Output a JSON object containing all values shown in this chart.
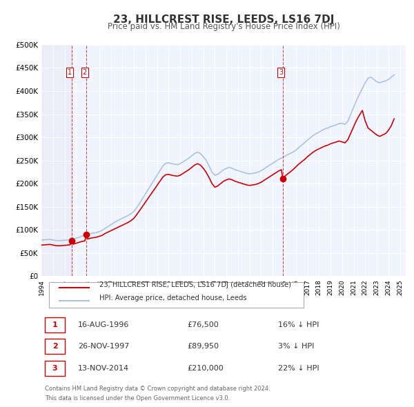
{
  "title": "23, HILLCREST RISE, LEEDS, LS16 7DJ",
  "subtitle": "Price paid vs. HM Land Registry's House Price Index (HPI)",
  "xlabel": "",
  "ylabel": "",
  "background_color": "#ffffff",
  "plot_bg_color": "#f0f4ff",
  "grid_color": "#ffffff",
  "hpi_color": "#aac4e0",
  "price_color": "#cc0000",
  "legend1": "23, HILLCREST RISE, LEEDS, LS16 7DJ (detached house)",
  "legend2": "HPI: Average price, detached house, Leeds",
  "transactions": [
    {
      "num": 1,
      "date": "16-AUG-1996",
      "price": 76500,
      "rel": "16% ↓ HPI",
      "year": 1996.62
    },
    {
      "num": 2,
      "date": "26-NOV-1997",
      "price": 89950,
      "rel": "3% ↓ HPI",
      "year": 1997.9
    },
    {
      "num": 3,
      "date": "13-NOV-2014",
      "price": 210000,
      "rel": "22% ↓ HPI",
      "year": 2014.87
    }
  ],
  "footer1": "Contains HM Land Registry data © Crown copyright and database right 2024.",
  "footer2": "This data is licensed under the Open Government Licence v3.0.",
  "hpi_data": {
    "years": [
      1994.0,
      1994.25,
      1994.5,
      1994.75,
      1995.0,
      1995.25,
      1995.5,
      1995.75,
      1996.0,
      1996.25,
      1996.5,
      1996.75,
      1997.0,
      1997.25,
      1997.5,
      1997.75,
      1998.0,
      1998.25,
      1998.5,
      1998.75,
      1999.0,
      1999.25,
      1999.5,
      1999.75,
      2000.0,
      2000.25,
      2000.5,
      2000.75,
      2001.0,
      2001.25,
      2001.5,
      2001.75,
      2002.0,
      2002.25,
      2002.5,
      2002.75,
      2003.0,
      2003.25,
      2003.5,
      2003.75,
      2004.0,
      2004.25,
      2004.5,
      2004.75,
      2005.0,
      2005.25,
      2005.5,
      2005.75,
      2006.0,
      2006.25,
      2006.5,
      2006.75,
      2007.0,
      2007.25,
      2007.5,
      2007.75,
      2008.0,
      2008.25,
      2008.5,
      2008.75,
      2009.0,
      2009.25,
      2009.5,
      2009.75,
      2010.0,
      2010.25,
      2010.5,
      2010.75,
      2011.0,
      2011.25,
      2011.5,
      2011.75,
      2012.0,
      2012.25,
      2012.5,
      2012.75,
      2013.0,
      2013.25,
      2013.5,
      2013.75,
      2014.0,
      2014.25,
      2014.5,
      2014.75,
      2015.0,
      2015.25,
      2015.5,
      2015.75,
      2016.0,
      2016.25,
      2016.5,
      2016.75,
      2017.0,
      2017.25,
      2017.5,
      2017.75,
      2018.0,
      2018.25,
      2018.5,
      2018.75,
      2019.0,
      2019.25,
      2019.5,
      2019.75,
      2020.0,
      2020.25,
      2020.5,
      2020.75,
      2021.0,
      2021.25,
      2021.5,
      2021.75,
      2022.0,
      2022.25,
      2022.5,
      2022.75,
      2023.0,
      2023.25,
      2023.5,
      2023.75,
      2024.0,
      2024.25,
      2024.5
    ],
    "values": [
      78000,
      78500,
      79000,
      79500,
      78000,
      77000,
      76500,
      77000,
      77500,
      78000,
      79000,
      80000,
      82000,
      84000,
      86000,
      88000,
      90000,
      92000,
      93000,
      94000,
      96000,
      99000,
      103000,
      107000,
      111000,
      115000,
      119000,
      122000,
      125000,
      128000,
      131000,
      135000,
      140000,
      148000,
      158000,
      168000,
      178000,
      188000,
      198000,
      208000,
      218000,
      228000,
      238000,
      244000,
      245000,
      243000,
      242000,
      241000,
      243000,
      247000,
      251000,
      255000,
      260000,
      265000,
      268000,
      265000,
      258000,
      250000,
      238000,
      225000,
      218000,
      220000,
      225000,
      230000,
      233000,
      235000,
      233000,
      230000,
      228000,
      226000,
      224000,
      222000,
      221000,
      222000,
      223000,
      225000,
      228000,
      232000,
      236000,
      240000,
      244000,
      248000,
      252000,
      255000,
      258000,
      262000,
      265000,
      268000,
      272000,
      278000,
      283000,
      288000,
      294000,
      299000,
      304000,
      308000,
      311000,
      315000,
      318000,
      320000,
      323000,
      325000,
      327000,
      330000,
      330000,
      328000,
      335000,
      350000,
      365000,
      380000,
      393000,
      406000,
      418000,
      428000,
      430000,
      425000,
      420000,
      418000,
      420000,
      422000,
      425000,
      430000,
      435000
    ]
  },
  "price_paid_data": {
    "years": [
      1994.0,
      1994.25,
      1994.5,
      1994.75,
      1995.0,
      1995.25,
      1995.5,
      1995.75,
      1996.0,
      1996.25,
      1996.5,
      1996.62,
      1996.75,
      1997.0,
      1997.25,
      1997.5,
      1997.75,
      1997.9,
      1998.0,
      1998.25,
      1998.5,
      1998.75,
      1999.0,
      1999.25,
      1999.5,
      1999.75,
      2000.0,
      2000.25,
      2000.5,
      2000.75,
      2001.0,
      2001.25,
      2001.5,
      2001.75,
      2002.0,
      2002.25,
      2002.5,
      2002.75,
      2003.0,
      2003.25,
      2003.5,
      2003.75,
      2004.0,
      2004.25,
      2004.5,
      2004.75,
      2005.0,
      2005.25,
      2005.5,
      2005.75,
      2006.0,
      2006.25,
      2006.5,
      2006.75,
      2007.0,
      2007.25,
      2007.5,
      2007.75,
      2008.0,
      2008.25,
      2008.5,
      2008.75,
      2009.0,
      2009.25,
      2009.5,
      2009.75,
      2010.0,
      2010.25,
      2010.5,
      2010.75,
      2011.0,
      2011.25,
      2011.5,
      2011.75,
      2012.0,
      2012.25,
      2012.5,
      2012.75,
      2013.0,
      2013.25,
      2013.5,
      2013.75,
      2014.0,
      2014.25,
      2014.5,
      2014.75,
      2014.87,
      2015.0,
      2015.25,
      2015.5,
      2015.75,
      2016.0,
      2016.25,
      2016.5,
      2016.75,
      2017.0,
      2017.25,
      2017.5,
      2017.75,
      2018.0,
      2018.25,
      2018.5,
      2018.75,
      2019.0,
      2019.25,
      2019.5,
      2019.75,
      2020.0,
      2020.25,
      2020.5,
      2020.75,
      2021.0,
      2021.25,
      2021.5,
      2021.75,
      2022.0,
      2022.25,
      2022.5,
      2022.75,
      2023.0,
      2023.25,
      2023.5,
      2023.75,
      2024.0,
      2024.25,
      2024.5
    ],
    "values": [
      67000,
      67500,
      68000,
      68500,
      67000,
      66000,
      65500,
      66000,
      66500,
      67000,
      68000,
      76500,
      69000,
      71000,
      73000,
      75000,
      76000,
      89950,
      80000,
      82000,
      83000,
      84000,
      86000,
      88000,
      92000,
      95000,
      98000,
      101000,
      104000,
      107000,
      110000,
      113000,
      116000,
      120000,
      125000,
      133000,
      142000,
      151000,
      160000,
      169000,
      178000,
      187000,
      196000,
      205000,
      214000,
      219000,
      220000,
      218000,
      217000,
      216000,
      218000,
      222000,
      226000,
      230000,
      235000,
      240000,
      243000,
      240000,
      233000,
      224000,
      213000,
      200000,
      192000,
      195000,
      200000,
      205000,
      208000,
      210000,
      208000,
      205000,
      203000,
      201000,
      199000,
      197000,
      196000,
      197000,
      198000,
      200000,
      203000,
      207000,
      211000,
      215000,
      219000,
      223000,
      227000,
      230000,
      210000,
      215000,
      220000,
      225000,
      230000,
      236000,
      242000,
      247000,
      252000,
      258000,
      263000,
      268000,
      272000,
      275000,
      278000,
      281000,
      283000,
      286000,
      288000,
      290000,
      292000,
      290000,
      288000,
      295000,
      309000,
      323000,
      337000,
      348000,
      358000,
      335000,
      320000,
      315000,
      310000,
      305000,
      302000,
      305000,
      308000,
      315000,
      325000,
      340000
    ]
  },
  "ylim": [
    0,
    500000
  ],
  "xlim_start": 1994,
  "xlim_end": 2025.5,
  "yticks": [
    0,
    50000,
    100000,
    150000,
    200000,
    250000,
    300000,
    350000,
    400000,
    450000,
    500000
  ],
  "ytick_labels": [
    "£0",
    "£50K",
    "£100K",
    "£150K",
    "£200K",
    "£250K",
    "£300K",
    "£350K",
    "£400K",
    "£450K",
    "£500K"
  ],
  "xticks": [
    1994,
    1995,
    1996,
    1997,
    1998,
    1999,
    2000,
    2001,
    2002,
    2003,
    2004,
    2005,
    2006,
    2007,
    2008,
    2009,
    2010,
    2011,
    2012,
    2013,
    2014,
    2015,
    2016,
    2017,
    2018,
    2019,
    2020,
    2021,
    2022,
    2023,
    2024,
    2025
  ]
}
